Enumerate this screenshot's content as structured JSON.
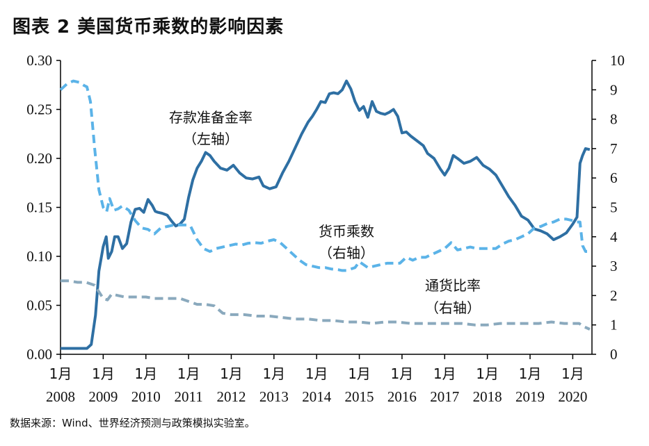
{
  "title": "图表 2    美国货币乘数的影响因素",
  "source": "数据来源：Wind、世界经济预测与政策模拟实验室。",
  "chart_data": {
    "type": "line",
    "left_axis": {
      "min": 0,
      "max": 0.3,
      "ticks": [
        "0.00",
        "0.05",
        "0.10",
        "0.15",
        "0.20",
        "0.25",
        "0.30"
      ]
    },
    "right_axis": {
      "min": 0,
      "max": 10,
      "ticks": [
        "0",
        "1",
        "2",
        "3",
        "4",
        "5",
        "6",
        "7",
        "8",
        "9",
        "10"
      ]
    },
    "x_ticks": [
      {
        "month": "1月",
        "year": "2008"
      },
      {
        "month": "1月",
        "year": "2009"
      },
      {
        "month": "1月",
        "year": "2010"
      },
      {
        "month": "1月",
        "year": "2011"
      },
      {
        "month": "1月",
        "year": "2012"
      },
      {
        "month": "1月",
        "year": "2013"
      },
      {
        "month": "1月",
        "year": "2014"
      },
      {
        "month": "1月",
        "year": "2015"
      },
      {
        "month": "1月",
        "year": "2016"
      },
      {
        "month": "1月",
        "year": "2017"
      },
      {
        "month": "1月",
        "year": "2018"
      },
      {
        "month": "1月",
        "year": "2019"
      },
      {
        "month": "1月",
        "year": "2020"
      }
    ],
    "x_range": [
      2008.0,
      2020.45
    ],
    "annotations": [
      {
        "lines": [
          "存款准备金率",
          "（左轴）"
        ],
        "series": "reserve"
      },
      {
        "lines": [
          "货币乘数",
          "（右轴）"
        ],
        "series": "multiplier"
      },
      {
        "lines": [
          "通货比率",
          "（右轴）"
        ],
        "series": "currency"
      }
    ],
    "series": [
      {
        "key": "reserve",
        "axis": "left",
        "style": "solid",
        "color": "#2e6fa3",
        "x": [
          2008.0,
          2008.25,
          2008.5,
          2008.62,
          2008.72,
          2008.82,
          2008.9,
          2009.0,
          2009.07,
          2009.12,
          2009.2,
          2009.27,
          2009.35,
          2009.45,
          2009.55,
          2009.65,
          2009.75,
          2009.85,
          2009.95,
          2010.05,
          2010.15,
          2010.22,
          2010.28,
          2010.38,
          2010.5,
          2010.6,
          2010.7,
          2010.8,
          2010.9,
          2011.0,
          2011.1,
          2011.2,
          2011.3,
          2011.4,
          2011.5,
          2011.6,
          2011.75,
          2011.9,
          2012.05,
          2012.2,
          2012.35,
          2012.5,
          2012.65,
          2012.75,
          2012.9,
          2013.05,
          2013.2,
          2013.35,
          2013.5,
          2013.65,
          2013.8,
          2013.9,
          2014.0,
          2014.1,
          2014.2,
          2014.3,
          2014.4,
          2014.5,
          2014.6,
          2014.7,
          2014.8,
          2014.9,
          2015.0,
          2015.1,
          2015.2,
          2015.3,
          2015.4,
          2015.5,
          2015.6,
          2015.7,
          2015.8,
          2015.9,
          2016.0,
          2016.1,
          2016.2,
          2016.35,
          2016.5,
          2016.6,
          2016.75,
          2016.9,
          2017.0,
          2017.1,
          2017.2,
          2017.3,
          2017.45,
          2017.6,
          2017.75,
          2017.9,
          2018.05,
          2018.2,
          2018.35,
          2018.5,
          2018.65,
          2018.8,
          2018.95,
          2019.1,
          2019.25,
          2019.4,
          2019.55,
          2019.7,
          2019.85,
          2020.0,
          2020.1,
          2020.17,
          2020.23,
          2020.3,
          2020.4
        ],
        "y": [
          0.006,
          0.006,
          0.006,
          0.006,
          0.01,
          0.04,
          0.085,
          0.11,
          0.12,
          0.098,
          0.105,
          0.12,
          0.12,
          0.108,
          0.113,
          0.135,
          0.148,
          0.149,
          0.145,
          0.158,
          0.152,
          0.146,
          0.145,
          0.144,
          0.142,
          0.136,
          0.131,
          0.133,
          0.138,
          0.16,
          0.178,
          0.19,
          0.197,
          0.206,
          0.203,
          0.197,
          0.19,
          0.188,
          0.193,
          0.185,
          0.18,
          0.179,
          0.181,
          0.172,
          0.169,
          0.171,
          0.185,
          0.197,
          0.211,
          0.225,
          0.237,
          0.243,
          0.25,
          0.258,
          0.257,
          0.266,
          0.267,
          0.266,
          0.27,
          0.279,
          0.271,
          0.258,
          0.249,
          0.253,
          0.242,
          0.258,
          0.248,
          0.246,
          0.245,
          0.247,
          0.25,
          0.243,
          0.226,
          0.227,
          0.223,
          0.218,
          0.213,
          0.205,
          0.2,
          0.189,
          0.183,
          0.19,
          0.203,
          0.2,
          0.195,
          0.197,
          0.201,
          0.193,
          0.189,
          0.183,
          0.172,
          0.161,
          0.152,
          0.141,
          0.137,
          0.128,
          0.126,
          0.123,
          0.117,
          0.12,
          0.124,
          0.133,
          0.14,
          0.195,
          0.203,
          0.21,
          0.209
        ]
      },
      {
        "key": "multiplier",
        "axis": "right",
        "style": "dashed",
        "color": "#5bb3e8",
        "x": [
          2008.0,
          2008.15,
          2008.3,
          2008.45,
          2008.55,
          2008.62,
          2008.7,
          2008.8,
          2008.9,
          2009.0,
          2009.08,
          2009.15,
          2009.25,
          2009.35,
          2009.45,
          2009.6,
          2009.75,
          2009.9,
          2010.05,
          2010.2,
          2010.35,
          2010.5,
          2010.65,
          2010.8,
          2010.95,
          2011.05,
          2011.2,
          2011.35,
          2011.5,
          2011.65,
          2011.8,
          2011.95,
          2012.1,
          2012.25,
          2012.4,
          2012.55,
          2012.7,
          2012.85,
          2013.0,
          2013.15,
          2013.3,
          2013.45,
          2013.6,
          2013.75,
          2013.9,
          2014.05,
          2014.2,
          2014.35,
          2014.5,
          2014.6,
          2014.7,
          2014.8,
          2014.9,
          2015.0,
          2015.1,
          2015.2,
          2015.35,
          2015.5,
          2015.65,
          2015.8,
          2015.95,
          2016.1,
          2016.25,
          2016.4,
          2016.55,
          2016.7,
          2016.85,
          2017.0,
          2017.15,
          2017.3,
          2017.45,
          2017.6,
          2017.75,
          2017.9,
          2018.05,
          2018.2,
          2018.35,
          2018.5,
          2018.65,
          2018.8,
          2018.95,
          2019.1,
          2019.25,
          2019.4,
          2019.55,
          2019.7,
          2019.85,
          2020.0,
          2020.1,
          2020.17,
          2020.23,
          2020.3,
          2020.4
        ],
        "y": [
          9.0,
          9.2,
          9.3,
          9.25,
          9.15,
          9.1,
          8.6,
          7.0,
          5.6,
          5.0,
          4.85,
          5.3,
          4.9,
          4.95,
          5.05,
          4.9,
          4.55,
          4.3,
          4.25,
          4.1,
          4.3,
          4.35,
          4.4,
          4.4,
          4.4,
          4.35,
          3.9,
          3.6,
          3.5,
          3.6,
          3.65,
          3.7,
          3.75,
          3.72,
          3.78,
          3.8,
          3.78,
          3.85,
          3.9,
          3.8,
          3.6,
          3.4,
          3.2,
          3.05,
          3.0,
          2.95,
          2.95,
          2.9,
          2.88,
          2.85,
          2.85,
          2.9,
          2.95,
          3.15,
          3.05,
          2.95,
          3.0,
          3.05,
          3.1,
          3.1,
          3.1,
          3.3,
          3.2,
          3.3,
          3.3,
          3.4,
          3.5,
          3.6,
          3.8,
          3.55,
          3.6,
          3.65,
          3.6,
          3.6,
          3.6,
          3.6,
          3.75,
          3.85,
          3.9,
          4.0,
          4.1,
          4.3,
          4.35,
          4.45,
          4.5,
          4.6,
          4.6,
          4.55,
          4.5,
          4.5,
          3.7,
          3.5,
          3.5
        ]
      },
      {
        "key": "currency",
        "axis": "right",
        "style": "dashed",
        "color": "#8aa9bd",
        "x": [
          2008.0,
          2008.2,
          2008.4,
          2008.6,
          2008.8,
          2009.0,
          2009.1,
          2009.2,
          2009.35,
          2009.5,
          2009.65,
          2009.8,
          2010.0,
          2010.2,
          2010.4,
          2010.6,
          2010.8,
          2011.0,
          2011.2,
          2011.4,
          2011.6,
          2011.8,
          2012.0,
          2012.3,
          2012.6,
          2012.9,
          2013.2,
          2013.5,
          2013.8,
          2014.1,
          2014.4,
          2014.7,
          2015.0,
          2015.3,
          2015.6,
          2015.9,
          2016.2,
          2016.5,
          2016.8,
          2017.1,
          2017.4,
          2017.7,
          2018.0,
          2018.3,
          2018.6,
          2018.9,
          2019.2,
          2019.5,
          2019.8,
          2020.0,
          2020.15,
          2020.25,
          2020.4
        ],
        "y": [
          2.5,
          2.5,
          2.45,
          2.45,
          2.35,
          1.9,
          1.85,
          2.05,
          2.0,
          1.95,
          1.95,
          1.95,
          1.95,
          1.9,
          1.9,
          1.9,
          1.9,
          1.8,
          1.7,
          1.7,
          1.65,
          1.4,
          1.35,
          1.35,
          1.3,
          1.3,
          1.25,
          1.2,
          1.2,
          1.15,
          1.15,
          1.1,
          1.1,
          1.05,
          1.1,
          1.1,
          1.05,
          1.05,
          1.05,
          1.05,
          1.05,
          1.0,
          1.0,
          1.05,
          1.05,
          1.05,
          1.05,
          1.1,
          1.05,
          1.05,
          1.05,
          0.95,
          0.85
        ]
      }
    ]
  }
}
